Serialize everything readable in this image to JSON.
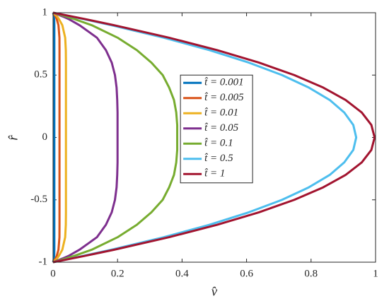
{
  "chart_data": {
    "type": "line",
    "x_label": "v̂",
    "y_label": "r̂",
    "xlim": [
      0,
      1
    ],
    "xticks": [
      0,
      0.2,
      0.4,
      0.6,
      0.8,
      1
    ],
    "ylim": [
      -1,
      1
    ],
    "yticks": [
      -1,
      -0.5,
      0,
      0.5,
      1
    ],
    "grid": false,
    "legend": "center",
    "series": [
      {
        "name": "t̂ = 0.001",
        "color": "#0072BD",
        "x": [
          0,
          0.0013,
          0.0028,
          0.0035,
          0.004,
          0.004,
          0.004,
          0.004,
          0.004,
          0.004,
          0.004,
          0.004,
          0.004,
          0.004,
          0.004,
          0.004,
          0.004,
          0.004,
          0.004,
          0.004,
          0.004,
          0.004,
          0.004,
          0.0035,
          0.0028,
          0.0013,
          0
        ],
        "values": [
          -1,
          -0.99,
          -0.97,
          -0.95,
          -0.9,
          -0.8,
          -0.7,
          -0.6,
          -0.5,
          -0.4,
          -0.3,
          -0.2,
          -0.1,
          0,
          0.1,
          0.2,
          0.3,
          0.4,
          0.5,
          0.6,
          0.7,
          0.8,
          0.9,
          0.95,
          0.97,
          0.99,
          1
        ]
      },
      {
        "name": "t̂ = 0.005",
        "color": "#D95319",
        "x": [
          0,
          0.003,
          0.008,
          0.0114,
          0.0168,
          0.0198,
          0.02,
          0.02,
          0.02,
          0.02,
          0.02,
          0.02,
          0.02,
          0.02,
          0.02,
          0.02,
          0.02,
          0.02,
          0.02,
          0.02,
          0.02,
          0.0198,
          0.0168,
          0.0114,
          0.008,
          0.003,
          0
        ],
        "values": [
          -1,
          -0.99,
          -0.97,
          -0.95,
          -0.9,
          -0.8,
          -0.7,
          -0.6,
          -0.5,
          -0.4,
          -0.3,
          -0.2,
          -0.1,
          0,
          0.1,
          0.2,
          0.3,
          0.4,
          0.5,
          0.6,
          0.7,
          0.8,
          0.9,
          0.95,
          0.97,
          0.99,
          1
        ]
      },
      {
        "name": "t̂ = 0.01",
        "color": "#EDB120",
        "x": [
          0,
          0.0044,
          0.0124,
          0.018,
          0.0288,
          0.0376,
          0.0396,
          0.04,
          0.04,
          0.04,
          0.04,
          0.04,
          0.04,
          0.04,
          0.04,
          0.04,
          0.04,
          0.04,
          0.04,
          0.04,
          0.0396,
          0.0376,
          0.0288,
          0.018,
          0.0124,
          0.0044,
          0
        ],
        "values": [
          -1,
          -0.99,
          -0.97,
          -0.95,
          -0.9,
          -0.8,
          -0.7,
          -0.6,
          -0.5,
          -0.4,
          -0.3,
          -0.2,
          -0.1,
          0,
          0.1,
          0.2,
          0.3,
          0.4,
          0.5,
          0.6,
          0.7,
          0.8,
          0.9,
          0.95,
          0.97,
          0.99,
          1
        ]
      },
      {
        "name": "t̂ = 0.05",
        "color": "#7E2F8E",
        "x": [
          0,
          0.01,
          0.03,
          0.048,
          0.082,
          0.136,
          0.164,
          0.182,
          0.192,
          0.197,
          0.199,
          0.2,
          0.2,
          0.2,
          0.2,
          0.2,
          0.199,
          0.197,
          0.192,
          0.182,
          0.164,
          0.136,
          0.082,
          0.048,
          0.03,
          0.01,
          0
        ],
        "values": [
          -1,
          -0.99,
          -0.97,
          -0.95,
          -0.9,
          -0.8,
          -0.7,
          -0.6,
          -0.5,
          -0.4,
          -0.3,
          -0.2,
          -0.1,
          0,
          0.1,
          0.2,
          0.3,
          0.4,
          0.5,
          0.6,
          0.7,
          0.8,
          0.9,
          0.95,
          0.97,
          0.99,
          1
        ]
      },
      {
        "name": "t̂ = 0.1",
        "color": "#77AC30",
        "x": [
          0,
          0.014,
          0.04,
          0.065,
          0.12,
          0.2,
          0.26,
          0.305,
          0.34,
          0.36,
          0.375,
          0.382,
          0.385,
          0.385,
          0.385,
          0.382,
          0.375,
          0.36,
          0.34,
          0.305,
          0.26,
          0.2,
          0.12,
          0.065,
          0.04,
          0.014,
          0
        ],
        "values": [
          -1,
          -0.99,
          -0.97,
          -0.95,
          -0.9,
          -0.8,
          -0.7,
          -0.6,
          -0.5,
          -0.4,
          -0.3,
          -0.2,
          -0.1,
          0,
          0.1,
          0.2,
          0.3,
          0.4,
          0.5,
          0.6,
          0.7,
          0.8,
          0.9,
          0.95,
          0.97,
          0.99,
          1
        ]
      },
      {
        "name": "t̂ = 0.5",
        "color": "#4DBEEE",
        "x": [
          0,
          0.0193,
          0.056,
          0.092,
          0.181,
          0.343,
          0.485,
          0.607,
          0.71,
          0.793,
          0.858,
          0.903,
          0.931,
          0.94,
          0.931,
          0.903,
          0.858,
          0.793,
          0.71,
          0.607,
          0.485,
          0.343,
          0.181,
          0.092,
          0.056,
          0.0193,
          0
        ],
        "values": [
          -1,
          -0.99,
          -0.97,
          -0.95,
          -0.9,
          -0.8,
          -0.7,
          -0.6,
          -0.5,
          -0.4,
          -0.3,
          -0.2,
          -0.1,
          0,
          0.1,
          0.2,
          0.3,
          0.4,
          0.5,
          0.6,
          0.7,
          0.8,
          0.9,
          0.95,
          0.97,
          0.99,
          1
        ]
      },
      {
        "name": "t̂ = 1",
        "color": "#A2142F",
        "x": [
          0,
          0.0198,
          0.0589,
          0.0972,
          0.1896,
          0.3592,
          0.5088,
          0.6384,
          0.748,
          0.8376,
          0.9074,
          0.9572,
          0.987,
          0.997,
          0.987,
          0.9572,
          0.9074,
          0.8376,
          0.748,
          0.6384,
          0.5088,
          0.3592,
          0.1896,
          0.0972,
          0.0589,
          0.0198,
          0
        ],
        "values": [
          -1,
          -0.99,
          -0.97,
          -0.95,
          -0.9,
          -0.8,
          -0.7,
          -0.6,
          -0.5,
          -0.4,
          -0.3,
          -0.2,
          -0.1,
          0,
          0.1,
          0.2,
          0.3,
          0.4,
          0.5,
          0.6,
          0.7,
          0.8,
          0.9,
          0.95,
          0.97,
          0.99,
          1
        ]
      }
    ]
  }
}
